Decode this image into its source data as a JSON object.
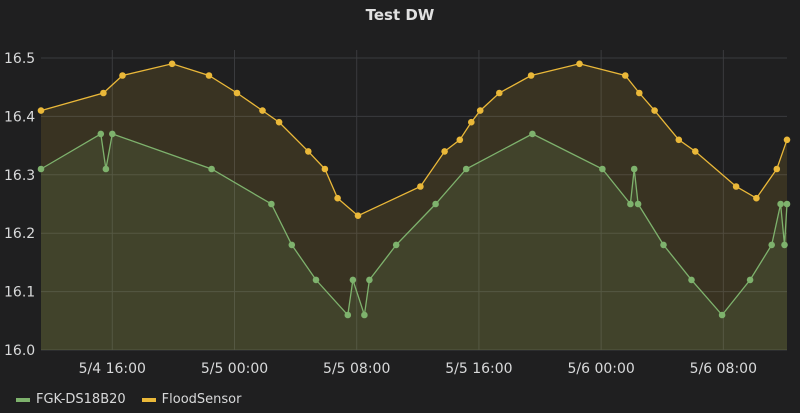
{
  "panel": {
    "title": "Test DW"
  },
  "legend": [
    {
      "label": "FGK-DS18B20",
      "color": "#7eb26d"
    },
    {
      "label": "FloodSensor",
      "color": "#eab839"
    }
  ],
  "chart_data": {
    "type": "line",
    "title": "Test DW",
    "xlabel": "",
    "ylabel": "",
    "ylim": [
      16.0,
      16.5
    ],
    "y_ticks": [
      "16.0",
      "16.1",
      "16.2",
      "16.3",
      "16.4",
      "16.5"
    ],
    "x_ticks": [
      "5/4 16:00",
      "5/5 00:00",
      "5/5 08:00",
      "5/5 16:00",
      "5/6 00:00",
      "5/6 08:00"
    ],
    "xlim": [
      "2024-05-04 11:20",
      "2024-05-06 12:10"
    ],
    "grid": true,
    "legend_position": "bottom-left",
    "series": [
      {
        "name": "FGK-DS18B20",
        "color": "#7eb26d",
        "points": [
          [
            "2024-05-04 11:20",
            16.31
          ],
          [
            "2024-05-04 15:15",
            16.37
          ],
          [
            "2024-05-04 15:35",
            16.31
          ],
          [
            "2024-05-04 16:00",
            16.37
          ],
          [
            "2024-05-04 22:30",
            16.31
          ],
          [
            "2024-05-05 02:25",
            16.25
          ],
          [
            "2024-05-05 03:45",
            16.18
          ],
          [
            "2024-05-05 05:20",
            16.12
          ],
          [
            "2024-05-05 07:25",
            16.06
          ],
          [
            "2024-05-05 07:45",
            16.12
          ],
          [
            "2024-05-05 08:30",
            16.06
          ],
          [
            "2024-05-05 08:50",
            16.12
          ],
          [
            "2024-05-05 10:35",
            16.18
          ],
          [
            "2024-05-05 13:10",
            16.25
          ],
          [
            "2024-05-05 15:10",
            16.31
          ],
          [
            "2024-05-05 19:30",
            16.37
          ],
          [
            "2024-05-06 00:05",
            16.31
          ],
          [
            "2024-05-06 01:55",
            16.25
          ],
          [
            "2024-05-06 02:10",
            16.31
          ],
          [
            "2024-05-06 02:25",
            16.25
          ],
          [
            "2024-05-06 04:05",
            16.18
          ],
          [
            "2024-05-06 05:55",
            16.12
          ],
          [
            "2024-05-06 07:55",
            16.06
          ],
          [
            "2024-05-06 09:45",
            16.12
          ],
          [
            "2024-05-06 11:10",
            16.18
          ],
          [
            "2024-05-06 11:45",
            16.25
          ],
          [
            "2024-05-06 12:00",
            16.18
          ],
          [
            "2024-05-06 12:10",
            16.25
          ]
        ]
      },
      {
        "name": "FloodSensor",
        "color": "#eab839",
        "points": [
          [
            "2024-05-04 11:20",
            16.41
          ],
          [
            "2024-05-04 15:25",
            16.44
          ],
          [
            "2024-05-04 16:40",
            16.47
          ],
          [
            "2024-05-04 19:55",
            16.49
          ],
          [
            "2024-05-04 22:20",
            16.47
          ],
          [
            "2024-05-05 00:10",
            16.44
          ],
          [
            "2024-05-05 01:50",
            16.41
          ],
          [
            "2024-05-05 02:55",
            16.39
          ],
          [
            "2024-05-05 04:50",
            16.34
          ],
          [
            "2024-05-05 05:55",
            16.31
          ],
          [
            "2024-05-05 06:45",
            16.26
          ],
          [
            "2024-05-05 08:05",
            16.23
          ],
          [
            "2024-05-05 12:10",
            16.28
          ],
          [
            "2024-05-05 13:45",
            16.34
          ],
          [
            "2024-05-05 14:45",
            16.36
          ],
          [
            "2024-05-05 15:30",
            16.39
          ],
          [
            "2024-05-05 16:05",
            16.41
          ],
          [
            "2024-05-05 17:20",
            16.44
          ],
          [
            "2024-05-05 19:25",
            16.47
          ],
          [
            "2024-05-05 22:35",
            16.49
          ],
          [
            "2024-05-06 01:35",
            16.47
          ],
          [
            "2024-05-06 02:30",
            16.44
          ],
          [
            "2024-05-06 03:30",
            16.41
          ],
          [
            "2024-05-06 05:05",
            16.36
          ],
          [
            "2024-05-06 06:10",
            16.34
          ],
          [
            "2024-05-06 08:50",
            16.28
          ],
          [
            "2024-05-06 10:10",
            16.26
          ],
          [
            "2024-05-06 11:30",
            16.31
          ],
          [
            "2024-05-06 12:10",
            16.36
          ]
        ]
      }
    ]
  }
}
